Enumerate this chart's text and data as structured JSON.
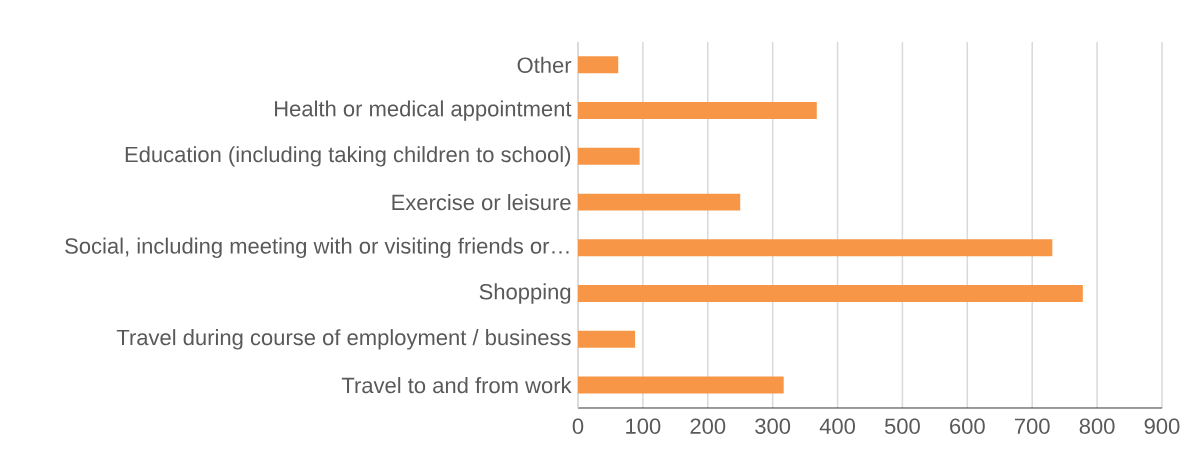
{
  "chart_data": {
    "type": "bar",
    "orientation": "horizontal",
    "categories": [
      "Other",
      "Health or medical appointment",
      "Education (including taking children to school)",
      "Exercise or leisure",
      "Social, including meeting with or visiting friends or…",
      "Shopping",
      "Travel during course of employment / business",
      "Travel to and from work"
    ],
    "values": [
      62,
      368,
      95,
      250,
      731,
      778,
      88,
      317
    ],
    "color": "#f79646",
    "xlim": [
      0,
      900
    ],
    "xticks": [
      0,
      100,
      200,
      300,
      400,
      500,
      600,
      700,
      800,
      900
    ],
    "grid": "x"
  }
}
